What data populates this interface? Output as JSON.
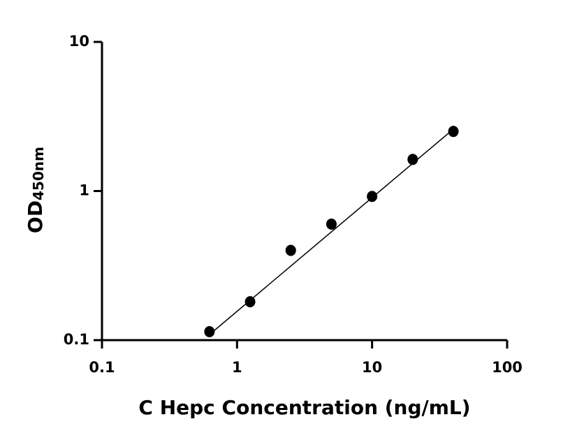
{
  "chart_data": {
    "type": "scatter",
    "x_label": "C Hepc Concentration (ng/mL)",
    "y_label": "OD",
    "y_label_sub": "450nm",
    "x_log": true,
    "y_log": true,
    "color": "#000000",
    "x": [
      0.625,
      1.25,
      2.5,
      5,
      10,
      20,
      40
    ],
    "values": [
      0.114,
      0.181,
      0.4,
      0.6,
      0.92,
      1.63,
      2.51
    ],
    "fit_line": {
      "x": [
        0.625,
        40
      ],
      "values": [
        0.109,
        2.6
      ]
    },
    "xlim": [
      0.1,
      100
    ],
    "xticks": [
      0.1,
      1,
      10,
      100
    ],
    "ylim": [
      0.1,
      10
    ],
    "yticks": [
      0.1,
      1,
      10
    ]
  }
}
